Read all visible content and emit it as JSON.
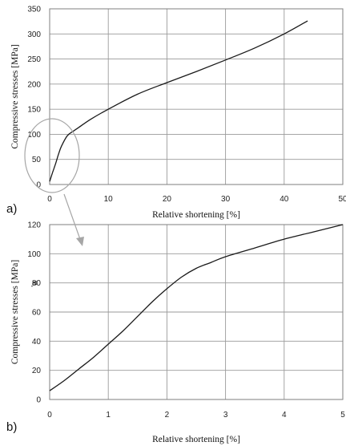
{
  "chart_data": [
    {
      "panel_label": "a)",
      "type": "line",
      "xlabel": "Relative shortening [%]",
      "ylabel": "Compressive stresses [MPa]",
      "xlim": [
        0,
        50
      ],
      "ylim": [
        0,
        350
      ],
      "xticks": [
        "0",
        "10",
        "20",
        "30",
        "40",
        "50"
      ],
      "yticks": [
        "0",
        "50",
        "100",
        "150",
        "200",
        "250",
        "300",
        "350"
      ],
      "grid": true,
      "series": [
        {
          "x": [
            0,
            0.5,
            1,
            1.5,
            2,
            3,
            4,
            5,
            7,
            10,
            15,
            20,
            25,
            30,
            35,
            40,
            44
          ],
          "y": [
            6,
            24,
            41,
            60,
            76,
            97,
            106,
            114,
            130,
            150,
            180,
            203,
            225,
            248,
            272,
            300,
            326
          ]
        }
      ]
    },
    {
      "panel_label": "b)",
      "type": "line",
      "xlabel": "Relative shortening [%]",
      "ylabel": "Compressive stresses [MPa]",
      "ylabel_extra": "'a",
      "xlim": [
        0,
        5
      ],
      "ylim": [
        0,
        120
      ],
      "xticks": [
        "0",
        "1",
        "2",
        "3",
        "4",
        "5"
      ],
      "yticks": [
        "0",
        "20",
        "40",
        "60",
        "80",
        "100",
        "120"
      ],
      "grid": true,
      "series": [
        {
          "x": [
            0,
            0.25,
            0.5,
            0.75,
            1,
            1.25,
            1.5,
            1.75,
            2,
            2.25,
            2.5,
            2.75,
            3,
            3.5,
            4,
            4.5,
            5
          ],
          "y": [
            6,
            13,
            21,
            29,
            38,
            47,
            57,
            67,
            76,
            84,
            90,
            94,
            98,
            104,
            110,
            115,
            120
          ]
        }
      ]
    }
  ]
}
